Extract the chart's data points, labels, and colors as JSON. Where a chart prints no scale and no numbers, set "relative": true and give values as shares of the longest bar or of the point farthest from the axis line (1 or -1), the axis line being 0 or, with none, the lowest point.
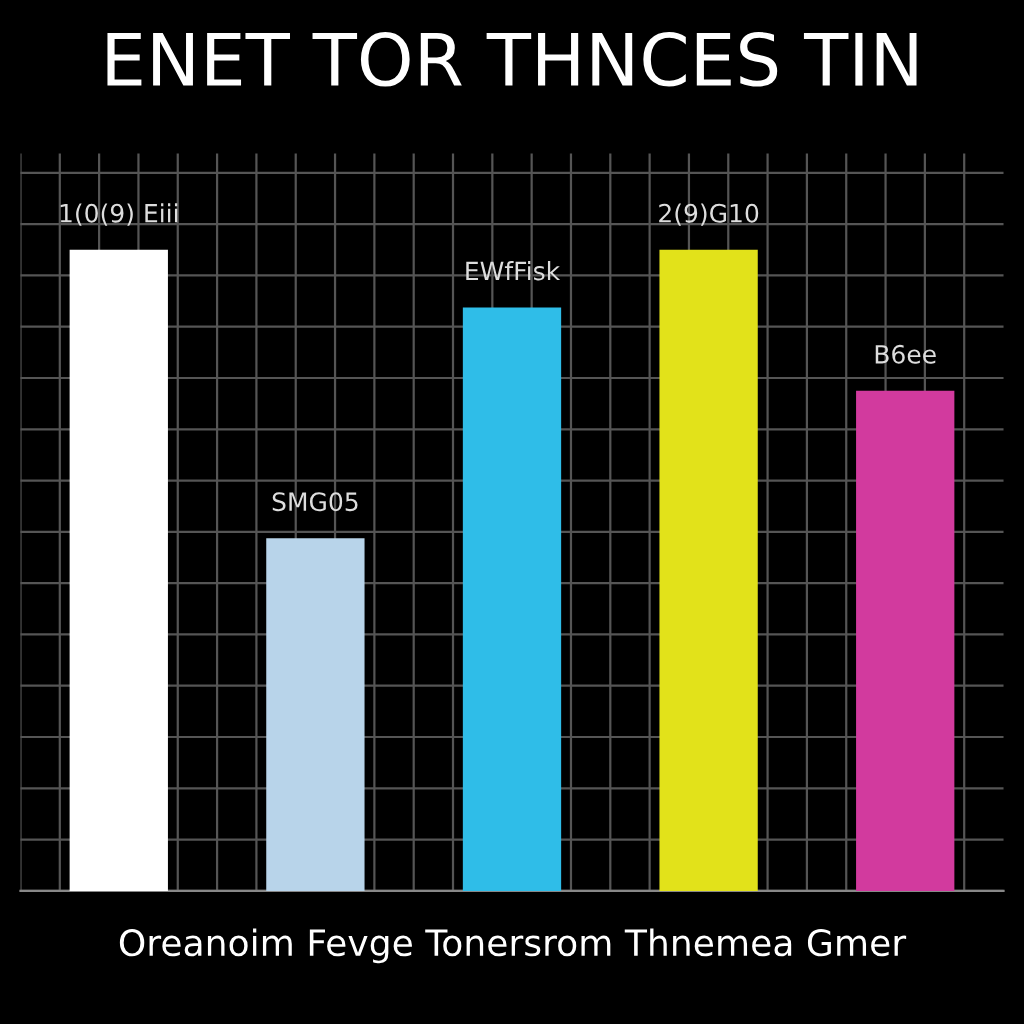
{
  "chart_data": {
    "type": "bar",
    "title": "ENET TOR THNCES TIN",
    "xlabel": "Oreanoim Fevge Tonersrom Thnemea Gmer",
    "relative": true,
    "categories": [
      null,
      null,
      null,
      null,
      null
    ],
    "values": [
      1,
      0.55,
      0.91,
      1,
      0.78
    ],
    "colors": [
      "#ffffff",
      "#b8d4ea",
      "#2fbde8",
      "#e2e21a",
      "#d23a9e"
    ],
    "annotations": [
      "1(0(9) Eiii",
      "SMG05",
      "EWfFisk",
      "2(9)G10",
      "B6ee"
    ],
    "grid": true
  }
}
